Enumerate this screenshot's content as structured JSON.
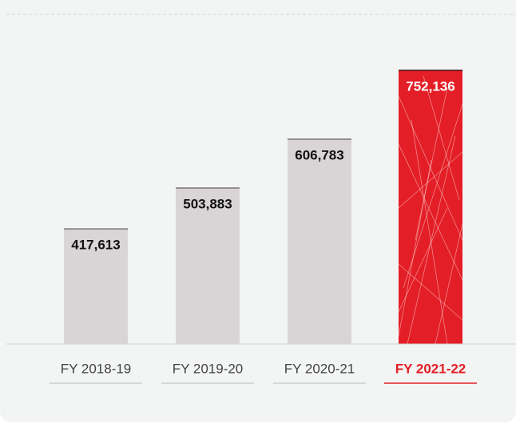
{
  "chart_data": {
    "type": "bar",
    "categories": [
      "FY 2018-19",
      "FY 2019-20",
      "FY 2020-21",
      "FY 2021-22"
    ],
    "values": [
      417613,
      503883,
      606783,
      752136
    ],
    "value_labels": [
      "417,613",
      "503,883",
      "606,783",
      "752,136"
    ],
    "colors": [
      "#d9d5d7",
      "#d9d5d7",
      "#d9d5d7",
      "#e41e26"
    ],
    "label_colors": [
      "#111111",
      "#111111",
      "#111111",
      "#ffffff"
    ],
    "ylim": [
      175000,
      870000
    ]
  }
}
